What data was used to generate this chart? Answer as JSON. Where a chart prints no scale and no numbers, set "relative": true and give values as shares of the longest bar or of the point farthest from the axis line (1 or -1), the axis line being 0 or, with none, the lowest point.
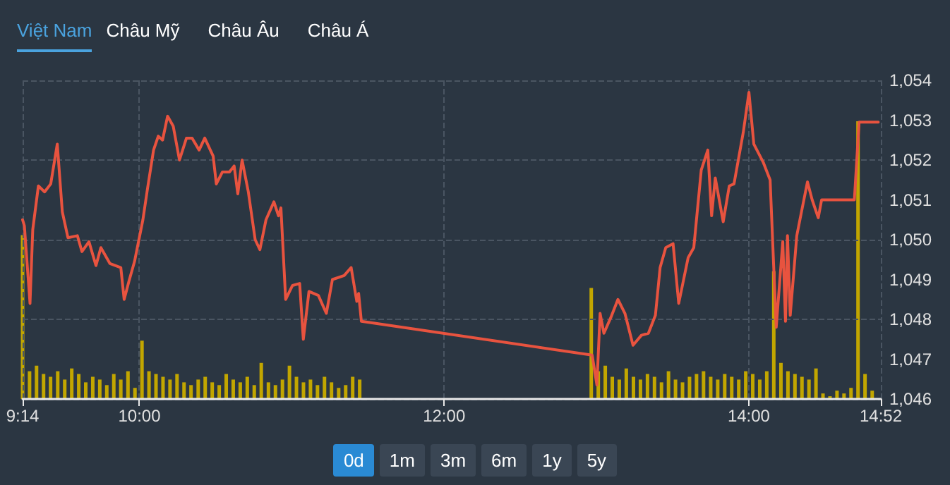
{
  "chart_data": [
    {
      "type": "line",
      "color": "#e8533f",
      "marker": "none",
      "line_style": "solid",
      "grid": true,
      "annotations": [
        "Việt Nam",
        "Châu Mỹ",
        "Châu Âu",
        "Châu Á"
      ],
      "xlim": [
        9.2333,
        14.8667
      ],
      "xticks": [
        {
          "value": 9.2333,
          "label": "9:14"
        },
        {
          "value": 10,
          "label": "10:00"
        },
        {
          "value": 12,
          "label": "12:00"
        },
        {
          "value": 14,
          "label": "14:00"
        },
        {
          "value": 14.8667,
          "label": "14:52"
        }
      ],
      "ylim": [
        1046,
        1054
      ],
      "yticks": [
        {
          "value": 1046,
          "label": "1,046"
        },
        {
          "value": 1047,
          "label": "1,047"
        },
        {
          "value": 1048,
          "label": "1,048"
        },
        {
          "value": 1049,
          "label": "1,049"
        },
        {
          "value": 1050,
          "label": "1,050"
        },
        {
          "value": 1051,
          "label": "1,051"
        },
        {
          "value": 1052,
          "label": "1,052"
        },
        {
          "value": 1053,
          "label": "1,053"
        },
        {
          "value": 1054,
          "label": "1,054"
        }
      ],
      "x": [
        9.2333,
        9.245,
        9.282,
        9.3,
        9.337,
        9.378,
        9.418,
        9.461,
        9.494,
        9.531,
        9.593,
        9.623,
        9.669,
        9.715,
        9.747,
        9.807,
        9.878,
        9.9,
        9.931,
        9.968,
        10.023,
        10.054,
        10.093,
        10.124,
        10.152,
        10.185,
        10.222,
        10.263,
        10.309,
        10.346,
        10.392,
        10.429,
        10.484,
        10.505,
        10.545,
        10.591,
        10.622,
        10.646,
        10.674,
        10.715,
        10.76,
        10.791,
        10.831,
        10.883,
        10.913,
        10.929,
        10.96,
        11.005,
        11.052,
        11.076,
        11.113,
        11.175,
        11.227,
        11.267,
        11.344,
        11.39,
        11.427,
        11.439,
        11.457,
        12.972,
        13.003,
        13.024,
        13.049,
        13.095,
        13.141,
        13.187,
        13.24,
        13.295,
        13.341,
        13.387,
        13.418,
        13.455,
        13.503,
        13.54,
        13.602,
        13.639,
        13.688,
        13.731,
        13.756,
        13.78,
        13.832,
        13.872,
        13.903,
        13.964,
        14.001,
        14.033,
        14.094,
        14.14,
        14.18,
        14.223,
        14.241,
        14.254,
        14.272,
        14.315,
        14.346,
        14.385,
        14.416,
        14.456,
        14.478,
        14.693,
        14.724,
        14.85
      ],
      "values": [
        1050.5,
        1050.35,
        1048.4,
        1050.25,
        1051.35,
        1051.2,
        1051.4,
        1052.4,
        1050.7,
        1050.05,
        1050.1,
        1049.7,
        1049.95,
        1049.35,
        1049.8,
        1049.4,
        1049.3,
        1048.5,
        1048.95,
        1049.45,
        1050.5,
        1051.3,
        1052.25,
        1052.6,
        1052.5,
        1053.1,
        1052.85,
        1052.0,
        1052.55,
        1052.55,
        1052.25,
        1052.55,
        1052.1,
        1051.4,
        1051.7,
        1051.7,
        1051.85,
        1051.15,
        1052.0,
        1051.2,
        1050.0,
        1049.75,
        1050.5,
        1050.95,
        1050.6,
        1050.8,
        1048.5,
        1048.85,
        1048.9,
        1047.5,
        1048.7,
        1048.6,
        1048.15,
        1049.0,
        1049.1,
        1049.3,
        1048.45,
        1048.65,
        1047.95,
        1047.1,
        1046.35,
        1048.15,
        1047.65,
        1048.05,
        1048.5,
        1048.15,
        1047.35,
        1047.6,
        1047.65,
        1048.1,
        1049.3,
        1049.8,
        1049.9,
        1048.4,
        1049.55,
        1049.8,
        1051.75,
        1052.25,
        1050.6,
        1051.55,
        1050.45,
        1051.35,
        1051.4,
        1052.7,
        1053.7,
        1052.4,
        1051.95,
        1051.5,
        1047.8,
        1049.95,
        1047.95,
        1050.1,
        1048.1,
        1050.1,
        1050.7,
        1051.45,
        1051.0,
        1050.55,
        1051.0,
        1051.0,
        1052.95,
        1052.95
      ]
    },
    {
      "type": "bar",
      "relative": true,
      "color": "#c2a600",
      "annotations": [
        "0d",
        "1m",
        "3m",
        "6m",
        "1y",
        "5y"
      ],
      "xlim": [
        9.2333,
        14.8667
      ],
      "x": [
        9.2333,
        9.279,
        9.325,
        9.371,
        9.417,
        9.464,
        9.51,
        9.556,
        9.602,
        9.648,
        9.694,
        9.74,
        9.786,
        9.832,
        9.878,
        9.925,
        9.971,
        10.017,
        10.063,
        10.109,
        10.155,
        10.201,
        10.247,
        10.293,
        10.339,
        10.386,
        10.432,
        10.478,
        10.524,
        10.57,
        10.616,
        10.662,
        10.708,
        10.754,
        10.8,
        10.847,
        10.893,
        10.939,
        10.985,
        11.031,
        11.077,
        11.123,
        11.169,
        11.215,
        11.261,
        11.308,
        11.354,
        11.4,
        11.446,
        12.966,
        13.012,
        13.058,
        13.104,
        13.15,
        13.196,
        13.243,
        13.289,
        13.335,
        13.381,
        13.427,
        13.473,
        13.519,
        13.565,
        13.611,
        13.657,
        13.703,
        13.75,
        13.796,
        13.842,
        13.888,
        13.934,
        13.98,
        14.026,
        14.072,
        14.118,
        14.164,
        14.211,
        14.257,
        14.303,
        14.349,
        14.395,
        14.441,
        14.487,
        14.533,
        14.579,
        14.625,
        14.671,
        14.717,
        14.763,
        14.81
      ],
      "values": [
        0.59,
        0.1,
        0.12,
        0.09,
        0.08,
        0.1,
        0.07,
        0.11,
        0.09,
        0.06,
        0.08,
        0.07,
        0.05,
        0.09,
        0.07,
        0.1,
        0.04,
        0.21,
        0.1,
        0.09,
        0.08,
        0.07,
        0.09,
        0.06,
        0.05,
        0.07,
        0.08,
        0.06,
        0.05,
        0.09,
        0.07,
        0.06,
        0.08,
        0.05,
        0.13,
        0.06,
        0.05,
        0.07,
        0.12,
        0.08,
        0.06,
        0.07,
        0.05,
        0.08,
        0.06,
        0.04,
        0.05,
        0.08,
        0.07,
        0.4,
        0.1,
        0.12,
        0.08,
        0.07,
        0.11,
        0.08,
        0.07,
        0.09,
        0.08,
        0.06,
        0.1,
        0.07,
        0.06,
        0.08,
        0.09,
        0.1,
        0.08,
        0.07,
        0.09,
        0.08,
        0.07,
        0.1,
        0.09,
        0.07,
        0.1,
        0.46,
        0.13,
        0.1,
        0.09,
        0.08,
        0.07,
        0.11,
        0.02,
        0.01,
        0.03,
        0.02,
        0.04,
        1.0,
        0.09,
        0.03
      ]
    }
  ]
}
